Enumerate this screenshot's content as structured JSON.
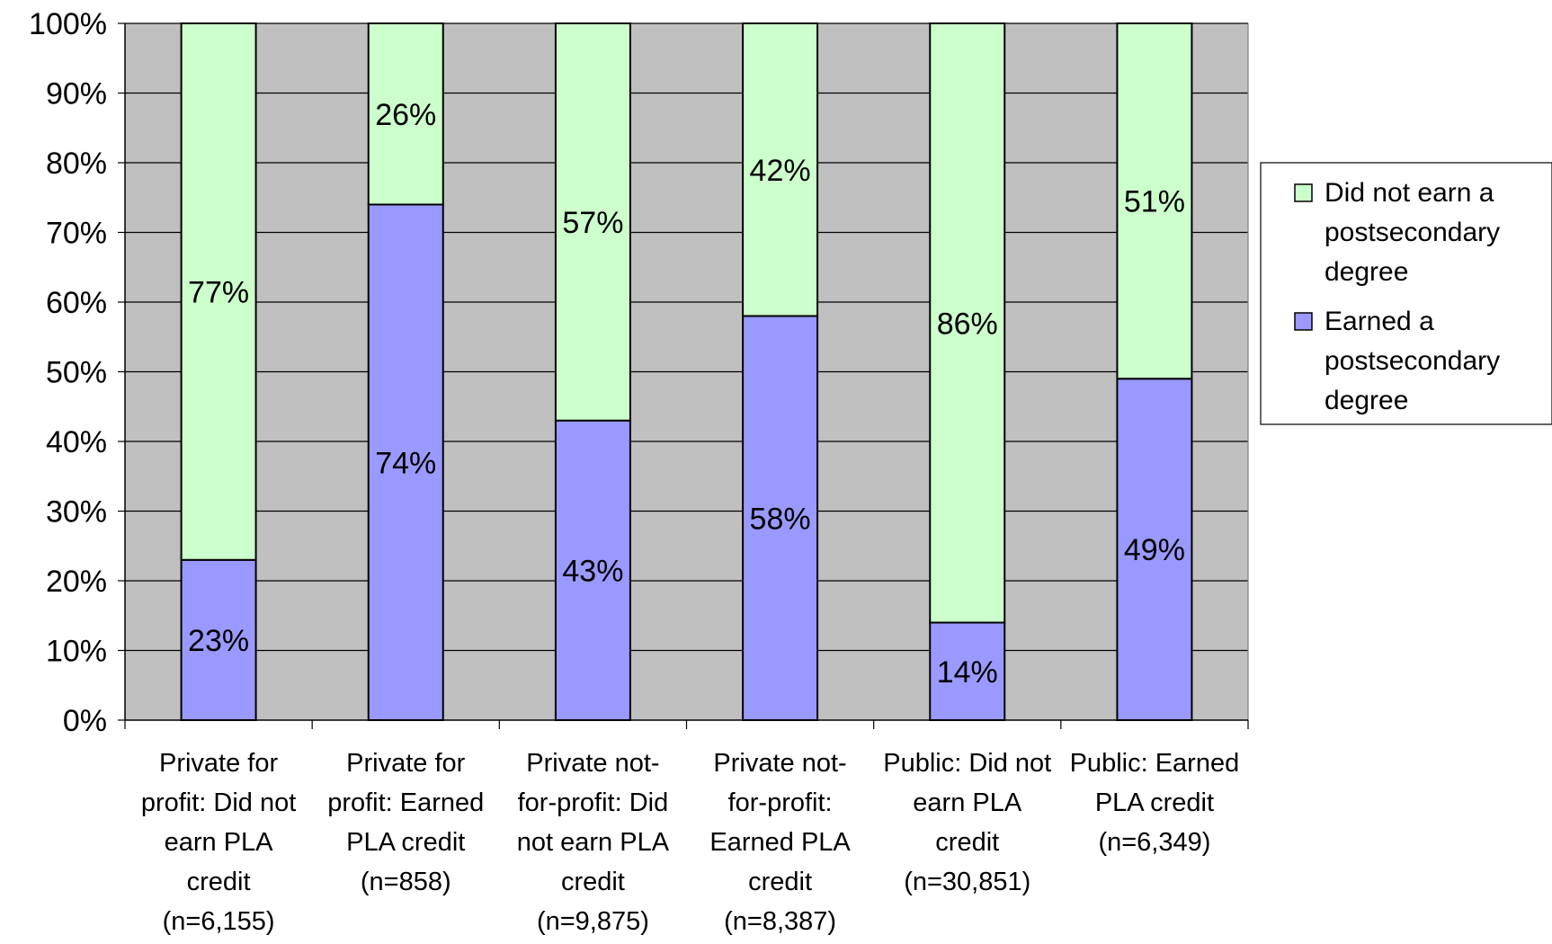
{
  "chart_data": {
    "type": "bar",
    "stacked": true,
    "percent_stacked": true,
    "categories": [
      [
        "Private for",
        "profit: Did not",
        "earn PLA",
        "credit",
        "(n=6,155)"
      ],
      [
        "Private for",
        "profit: Earned",
        "PLA credit",
        "(n=858)"
      ],
      [
        "Private not-",
        "for-profit: Did",
        "not earn PLA",
        "credit",
        "(n=9,875)"
      ],
      [
        "Private not-",
        "for-profit:",
        "Earned PLA",
        "credit",
        "(n=8,387)"
      ],
      [
        "Public: Did not",
        "earn PLA",
        "credit",
        "(n=30,851)"
      ],
      [
        "Public: Earned",
        "PLA credit",
        "(n=6,349)"
      ]
    ],
    "series": [
      {
        "name": "Earned a postsecondary degree",
        "legend_lines": [
          "Earned a",
          "postsecondary",
          "degree"
        ],
        "color": "#9999ff",
        "values": [
          23,
          74,
          43,
          58,
          14,
          49
        ],
        "labels": [
          "23%",
          "74%",
          "43%",
          "58%",
          "14%",
          "49%"
        ]
      },
      {
        "name": "Did not earn a postsecondary degree",
        "legend_lines": [
          "Did not earn a",
          "postsecondary",
          "degree"
        ],
        "color": "#ccffcc",
        "values": [
          77,
          26,
          57,
          42,
          86,
          51
        ],
        "labels": [
          "77%",
          "26%",
          "57%",
          "42%",
          "86%",
          "51%"
        ]
      }
    ],
    "ylim": [
      0,
      100
    ],
    "yticks": [
      "0%",
      "10%",
      "20%",
      "30%",
      "40%",
      "50%",
      "60%",
      "70%",
      "80%",
      "90%",
      "100%"
    ],
    "plot_background": "#c0c0c0",
    "grid": true,
    "legend_position": "right"
  }
}
